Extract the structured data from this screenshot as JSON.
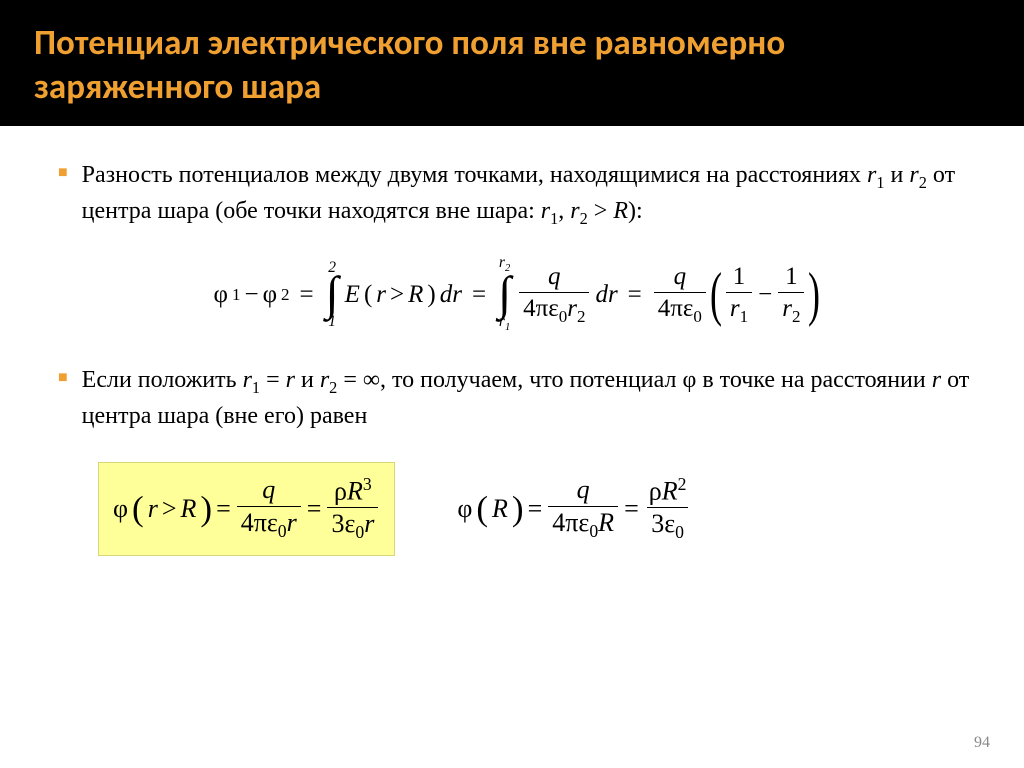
{
  "header": {
    "title": "Потенциал электрического поля вне равномерно заряженного шара",
    "title_color": "#f0a030",
    "background_color": "#000000"
  },
  "bullets": [
    {
      "text_parts": {
        "a": "Разность потенциалов между двумя точками, находящимися на расстояниях ",
        "r1": "r",
        "r1sub": "1",
        "b": " и ",
        "r2": "r",
        "r2sub": "2",
        "c": " от центра шара (обе точки находятся вне шара: ",
        "cond1": "r",
        "cond1sub": "1",
        "comma": ", ",
        "cond2": "r",
        "cond2sub": "2",
        "gt": " > ",
        "R": "R",
        "end": "):"
      }
    },
    {
      "text_parts": {
        "a": "Если положить ",
        "r1": "r",
        "r1sub": "1",
        "eq1": " = ",
        "rv": "r",
        "b": " и ",
        "r2": "r",
        "r2sub": "2",
        "eq2": " = ∞, то получаем, что потенциал φ в точке на расстоянии ",
        "rc": "r",
        "c": " от центра шара (вне его) равен"
      }
    }
  ],
  "eq1": {
    "phi1": "φ",
    "sub1": "1",
    "minus": " − ",
    "phi2": "φ",
    "sub2": "2",
    "eq": " = ",
    "int1_lo": "1",
    "int1_hi": "2",
    "E": "E",
    "lp": "(",
    "r": "r",
    "gt": " > ",
    "R": "R",
    "rp": ")",
    "dr": "dr",
    "int2_lo_a": "r",
    "int2_lo_b": "1",
    "int2_hi_a": "r",
    "int2_hi_b": "2",
    "frac1_num": "q",
    "frac1_den_a": "4πε",
    "frac1_den_b": "0",
    "frac1_den_c": "r",
    "frac1_den_d": "2",
    "dr2": "dr",
    "frac2_num": "q",
    "frac2_den_a": "4πε",
    "frac2_den_b": "0",
    "p1_num": "1",
    "p1_den_a": "r",
    "p1_den_b": "1",
    "pminus": " − ",
    "p2_num": "1",
    "p2_den_a": "r",
    "p2_den_b": "2"
  },
  "eq2a": {
    "phi": "φ",
    "lp": "(",
    "r": "r",
    "gt": " > ",
    "R": "R",
    "rp": ")",
    "eq": " = ",
    "f1_num": "q",
    "f1_den_a": "4πε",
    "f1_den_b": "0",
    "f1_den_c": "r",
    "eq2": " = ",
    "f2_num_a": "ρ",
    "f2_num_b": "R",
    "f2_num_c": "3",
    "f2_den_a": "3ε",
    "f2_den_b": "0",
    "f2_den_c": "r"
  },
  "eq2b": {
    "phi": "φ",
    "lp": "(",
    "R": "R",
    "rp": ")",
    "eq": " = ",
    "f1_num": "q",
    "f1_den_a": "4πε",
    "f1_den_b": "0",
    "f1_den_c": "R",
    "eq2": " = ",
    "f2_num_a": "ρ",
    "f2_num_b": "R",
    "f2_num_c": "2",
    "f2_den_a": "3ε",
    "f2_den_b": "0"
  },
  "page_number": "94",
  "colors": {
    "bullet": "#f0a030",
    "highlight_bg": "#ffff99",
    "highlight_border": "#d8d878",
    "page_num": "#888888"
  }
}
